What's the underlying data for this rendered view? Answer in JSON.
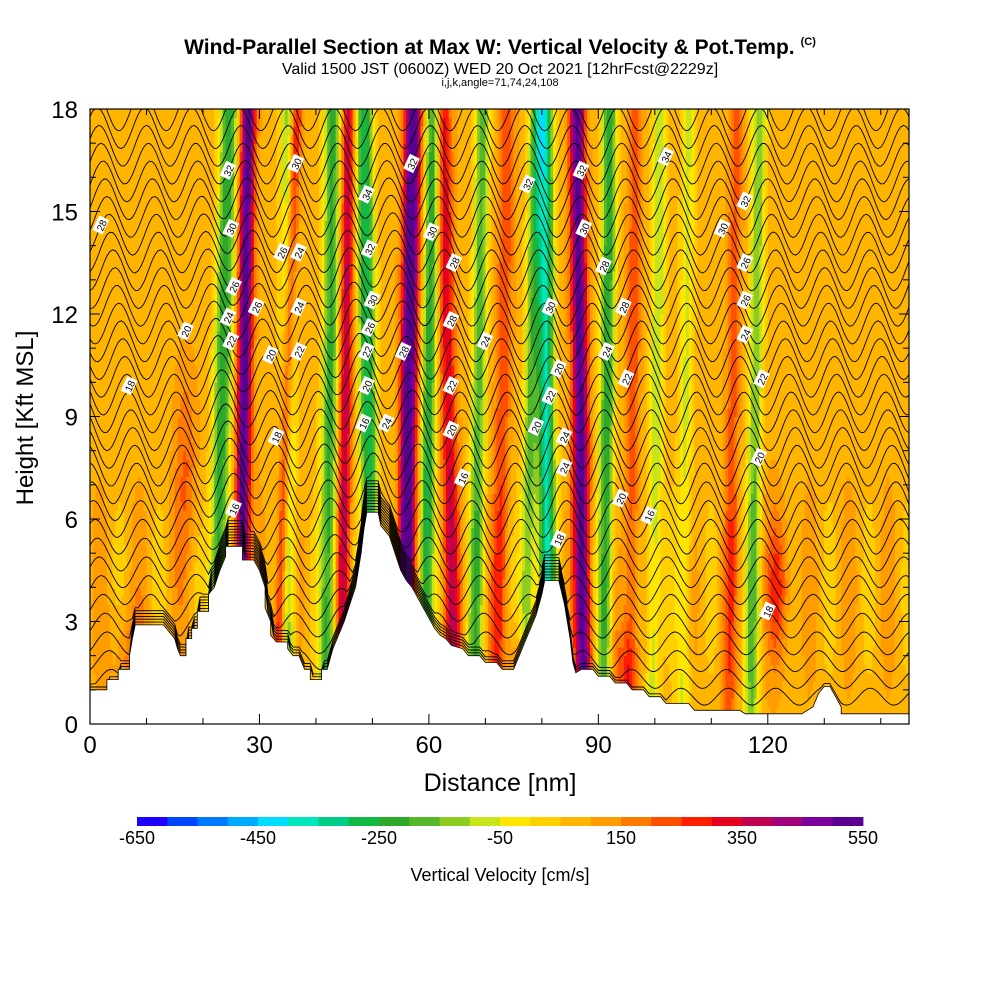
{
  "chart_data": {
    "type": "heatmap",
    "title": "Wind-Parallel Section at Max W: Vertical Velocity & Pot.Temp.",
    "copyright_mark": "(C)",
    "subtitle": "Valid 1500 JST (0600Z) WED 20 Oct 2021 [12hrFcst@2229z]",
    "subtitle2": "i,j,k,angle=71,74,24,108",
    "xlabel": "Distance [nm]",
    "ylabel": "Height [Kft MSL]",
    "xlim": [
      0,
      145
    ],
    "ylim": [
      0,
      18
    ],
    "x_ticks": [
      0,
      30,
      60,
      90,
      120
    ],
    "y_ticks": [
      0,
      3,
      6,
      9,
      12,
      15,
      18
    ],
    "colorbar": {
      "label": "Vertical Velocity [cm/s]",
      "tick_labels": [
        -650,
        -450,
        -250,
        -50,
        150,
        350,
        550
      ],
      "colors": [
        "#1e00ff",
        "#0046ff",
        "#0078ff",
        "#00aaff",
        "#00ddff",
        "#00e6bb",
        "#00cc88",
        "#11b844",
        "#2ca82a",
        "#55b82a",
        "#8fcc22",
        "#c8e41a",
        "#ffe600",
        "#ffd000",
        "#ffb400",
        "#ff9c00",
        "#ff7a00",
        "#ff5000",
        "#ff1e00",
        "#e60020",
        "#c00050",
        "#a0007a",
        "#7a009e",
        "#5a0090"
      ]
    },
    "terrain_kft": [
      [
        0,
        1.0
      ],
      [
        3,
        1.0
      ],
      [
        3,
        1.3
      ],
      [
        5,
        1.3
      ],
      [
        5,
        1.6
      ],
      [
        7,
        1.6
      ],
      [
        7,
        2.0
      ],
      [
        7.5,
        2.5
      ],
      [
        8,
        2.9
      ],
      [
        13,
        2.9
      ],
      [
        14,
        2.7
      ],
      [
        15,
        2.5
      ],
      [
        15.5,
        2.2
      ],
      [
        16,
        2.0
      ],
      [
        17,
        2.0
      ],
      [
        17,
        2.5
      ],
      [
        18,
        2.5
      ],
      [
        18,
        2.8
      ],
      [
        19,
        2.8
      ],
      [
        19,
        3.3
      ],
      [
        21,
        3.3
      ],
      [
        21,
        3.8
      ],
      [
        22,
        4.0
      ],
      [
        23,
        4.5
      ],
      [
        24,
        4.9
      ],
      [
        24,
        5.2
      ],
      [
        27,
        5.2
      ],
      [
        27,
        4.8
      ],
      [
        29,
        4.8
      ],
      [
        30,
        4.5
      ],
      [
        31,
        4.0
      ],
      [
        31,
        3.4
      ],
      [
        32,
        3.0
      ],
      [
        32,
        2.6
      ],
      [
        33,
        2.4
      ],
      [
        35,
        2.4
      ],
      [
        35,
        2.2
      ],
      [
        36,
        2.0
      ],
      [
        37,
        2.0
      ],
      [
        38,
        1.6
      ],
      [
        39,
        1.6
      ],
      [
        39,
        1.3
      ],
      [
        41,
        1.3
      ],
      [
        41,
        1.6
      ],
      [
        42,
        1.6
      ],
      [
        43,
        2.2
      ],
      [
        44,
        2.6
      ],
      [
        45,
        3.0
      ],
      [
        46,
        3.5
      ],
      [
        47,
        4.0
      ],
      [
        47.5,
        4.5
      ],
      [
        48,
        5.0
      ],
      [
        48.5,
        5.7
      ],
      [
        49,
        6.2
      ],
      [
        51,
        6.2
      ],
      [
        51.5,
        5.8
      ],
      [
        53,
        5.5
      ],
      [
        54,
        5.0
      ],
      [
        55,
        4.5
      ],
      [
        56,
        4.2
      ],
      [
        57,
        4.0
      ],
      [
        58,
        3.7
      ],
      [
        59,
        3.4
      ],
      [
        60,
        3.1
      ],
      [
        61,
        2.8
      ],
      [
        62,
        2.6
      ],
      [
        63,
        2.5
      ],
      [
        64,
        2.3
      ],
      [
        66,
        2.2
      ],
      [
        67,
        2.0
      ],
      [
        69,
        2.0
      ],
      [
        70,
        1.8
      ],
      [
        71,
        1.8
      ],
      [
        72,
        1.8
      ],
      [
        73,
        1.6
      ],
      [
        75,
        1.6
      ],
      [
        76,
        2.0
      ],
      [
        77,
        2.4
      ],
      [
        78,
        2.8
      ],
      [
        79,
        3.2
      ],
      [
        80,
        3.8
      ],
      [
        80.5,
        4.2
      ],
      [
        83,
        4.2
      ],
      [
        84,
        3.5
      ],
      [
        85,
        2.5
      ],
      [
        85.5,
        1.8
      ],
      [
        86,
        1.5
      ],
      [
        87,
        1.6
      ],
      [
        89,
        1.6
      ],
      [
        90,
        1.4
      ],
      [
        92,
        1.4
      ],
      [
        93,
        1.2
      ],
      [
        95,
        1.2
      ],
      [
        96,
        1.0
      ],
      [
        98,
        1.0
      ],
      [
        99,
        0.8
      ],
      [
        101,
        0.8
      ],
      [
        102,
        0.6
      ],
      [
        106,
        0.6
      ],
      [
        107,
        0.4
      ],
      [
        115,
        0.4
      ],
      [
        116,
        0.3
      ],
      [
        126,
        0.3
      ],
      [
        128,
        0.5
      ],
      [
        129,
        0.9
      ],
      [
        130,
        1.1
      ],
      [
        131,
        1.1
      ],
      [
        132,
        0.8
      ],
      [
        133,
        0.5
      ],
      [
        133,
        0.3
      ],
      [
        145,
        0.3
      ]
    ],
    "contour_labels": [
      {
        "x": 2,
        "y": 14.6,
        "label": "28"
      },
      {
        "x": 7,
        "y": 9.9,
        "label": "18"
      },
      {
        "x": 17,
        "y": 11.5,
        "label": "20"
      },
      {
        "x": 24.5,
        "y": 16.2,
        "label": "32"
      },
      {
        "x": 25,
        "y": 14.5,
        "label": "30"
      },
      {
        "x": 25.5,
        "y": 12.8,
        "label": "26"
      },
      {
        "x": 24.5,
        "y": 11.9,
        "label": "24"
      },
      {
        "x": 25,
        "y": 11.2,
        "label": "22"
      },
      {
        "x": 29.5,
        "y": 12.2,
        "label": "26"
      },
      {
        "x": 32,
        "y": 10.8,
        "label": "20"
      },
      {
        "x": 33,
        "y": 8.4,
        "label": "18"
      },
      {
        "x": 34,
        "y": 13.8,
        "label": "26"
      },
      {
        "x": 37,
        "y": 13.8,
        "label": "24"
      },
      {
        "x": 37,
        "y": 12.2,
        "label": "24"
      },
      {
        "x": 37,
        "y": 10.9,
        "label": "22"
      },
      {
        "x": 36.5,
        "y": 16.4,
        "label": "30"
      },
      {
        "x": 25.5,
        "y": 6.3,
        "label": "16"
      },
      {
        "x": 49,
        "y": 15.5,
        "label": "34"
      },
      {
        "x": 49.5,
        "y": 13.9,
        "label": "32"
      },
      {
        "x": 50,
        "y": 12.4,
        "label": "30"
      },
      {
        "x": 49.5,
        "y": 11.6,
        "label": "26"
      },
      {
        "x": 49,
        "y": 10.9,
        "label": "22"
      },
      {
        "x": 49,
        "y": 9.9,
        "label": "20"
      },
      {
        "x": 48.5,
        "y": 8.8,
        "label": "16"
      },
      {
        "x": 52.5,
        "y": 8.8,
        "label": "24"
      },
      {
        "x": 55.5,
        "y": 10.9,
        "label": "28"
      },
      {
        "x": 57,
        "y": 16.4,
        "label": "32"
      },
      {
        "x": 60.5,
        "y": 14.4,
        "label": "30"
      },
      {
        "x": 64.5,
        "y": 13.5,
        "label": "28"
      },
      {
        "x": 64,
        "y": 11.8,
        "label": "28"
      },
      {
        "x": 64,
        "y": 9.9,
        "label": "22"
      },
      {
        "x": 64,
        "y": 8.6,
        "label": "20"
      },
      {
        "x": 66,
        "y": 7.2,
        "label": "16"
      },
      {
        "x": 70,
        "y": 11.2,
        "label": "24"
      },
      {
        "x": 77.5,
        "y": 15.8,
        "label": "32"
      },
      {
        "x": 79,
        "y": 8.7,
        "label": "20"
      },
      {
        "x": 81.5,
        "y": 12.2,
        "label": "30"
      },
      {
        "x": 83,
        "y": 10.4,
        "label": "20"
      },
      {
        "x": 81.5,
        "y": 9.6,
        "label": "22"
      },
      {
        "x": 84,
        "y": 8.4,
        "label": "24"
      },
      {
        "x": 84,
        "y": 7.5,
        "label": "24"
      },
      {
        "x": 83,
        "y": 5.4,
        "label": "18"
      },
      {
        "x": 87,
        "y": 16.2,
        "label": "32"
      },
      {
        "x": 87.5,
        "y": 14.5,
        "label": "30"
      },
      {
        "x": 91,
        "y": 13.4,
        "label": "28"
      },
      {
        "x": 94.5,
        "y": 12.2,
        "label": "28"
      },
      {
        "x": 91.5,
        "y": 10.9,
        "label": "24"
      },
      {
        "x": 95,
        "y": 10.1,
        "label": "22"
      },
      {
        "x": 94,
        "y": 6.6,
        "label": "20"
      },
      {
        "x": 99,
        "y": 6.1,
        "label": "16"
      },
      {
        "x": 102,
        "y": 16.6,
        "label": "34"
      },
      {
        "x": 112,
        "y": 14.5,
        "label": "30"
      },
      {
        "x": 116,
        "y": 15.3,
        "label": "32"
      },
      {
        "x": 116,
        "y": 13.5,
        "label": "26"
      },
      {
        "x": 116,
        "y": 12.4,
        "label": "26"
      },
      {
        "x": 116,
        "y": 11.4,
        "label": "24"
      },
      {
        "x": 119,
        "y": 10.1,
        "label": "22"
      },
      {
        "x": 118.5,
        "y": 7.8,
        "label": "20"
      },
      {
        "x": 120,
        "y": 3.3,
        "label": "18"
      }
    ]
  }
}
